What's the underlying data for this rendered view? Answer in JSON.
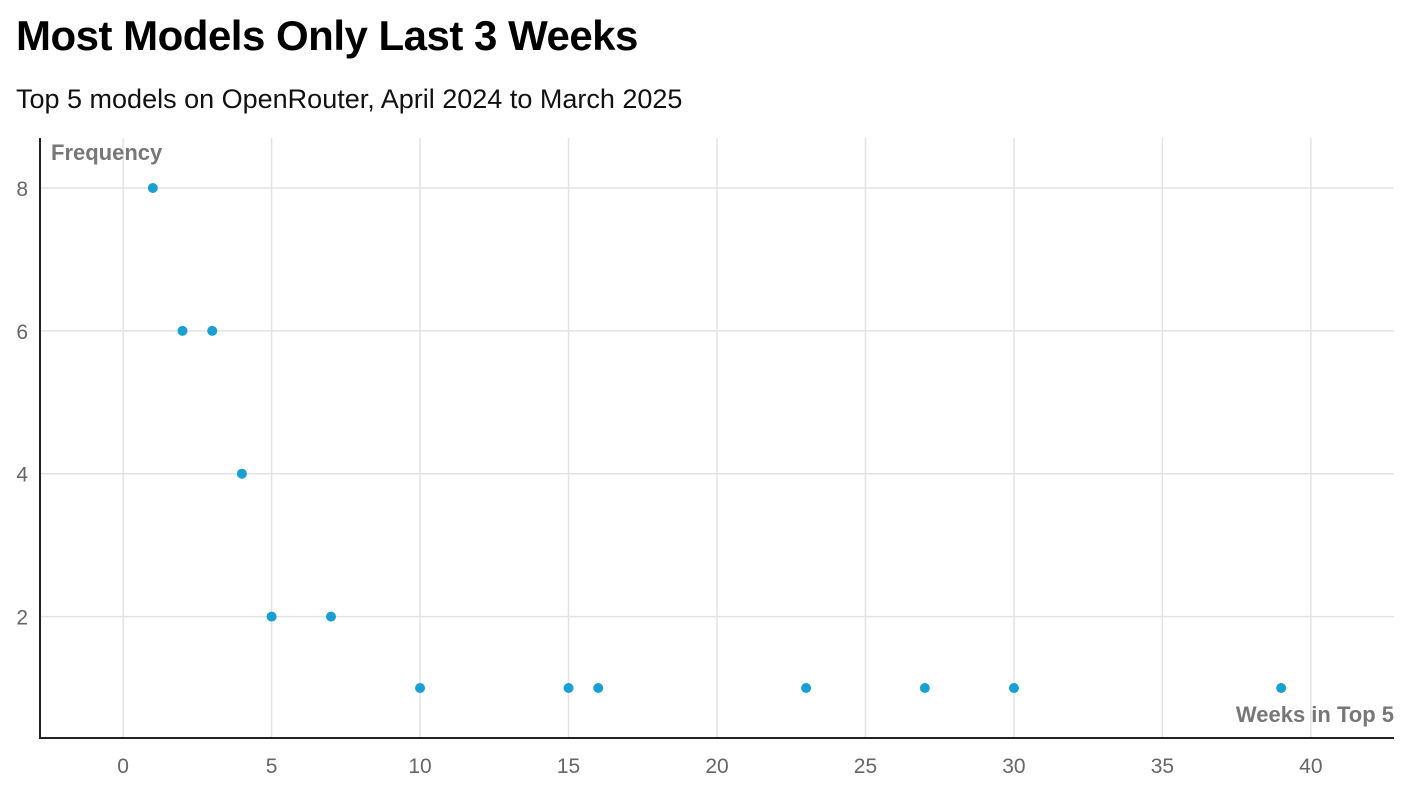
{
  "chart_data": {
    "type": "scatter",
    "title": "Most Models Only Last 3 Weeks",
    "subtitle": "Top 5 models on OpenRouter, April 2024 to March 2025",
    "xlabel": "Weeks in Top 5",
    "ylabel": "Frequency",
    "xlim": [
      -2.8,
      42.8
    ],
    "ylim": [
      0.3,
      8.7
    ],
    "x_ticks": [
      0,
      5,
      10,
      15,
      20,
      25,
      30,
      35,
      40
    ],
    "y_ticks": [
      2,
      4,
      6,
      8
    ],
    "grid": true,
    "legend": "none",
    "point_color": "#1a9fd1",
    "points": [
      {
        "x": 1,
        "y": 8
      },
      {
        "x": 2,
        "y": 6
      },
      {
        "x": 3,
        "y": 6
      },
      {
        "x": 4,
        "y": 4
      },
      {
        "x": 5,
        "y": 2
      },
      {
        "x": 7,
        "y": 2
      },
      {
        "x": 10,
        "y": 1
      },
      {
        "x": 15,
        "y": 1
      },
      {
        "x": 16,
        "y": 1
      },
      {
        "x": 23,
        "y": 1
      },
      {
        "x": 27,
        "y": 1
      },
      {
        "x": 30,
        "y": 1
      },
      {
        "x": 39,
        "y": 1
      }
    ]
  }
}
